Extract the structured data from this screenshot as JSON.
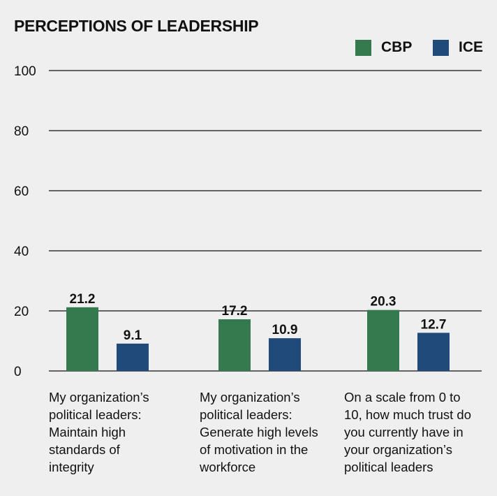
{
  "chart_data": {
    "type": "bar",
    "title": "PERCEPTIONS OF LEADERSHIP",
    "categories": [
      "My organization’s political leaders: Maintain high standards of integrity",
      "My organization’s political leaders: Generate high levels of motivation in the workforce",
      "On a scale from 0 to 10, how much trust do you currently have in your organization’s political leaders"
    ],
    "category_lines": [
      [
        "My organization’s",
        "political leaders:",
        "Maintain high",
        "standards of",
        "integrity"
      ],
      [
        "My organization’s",
        "political leaders:",
        "Generate high levels",
        "of motivation in the",
        "workforce"
      ],
      [
        "On a scale from 0 to",
        "10, how much trust do",
        "you currently have in",
        "your organization’s",
        "political leaders"
      ]
    ],
    "series": [
      {
        "name": "CBP",
        "color": "#347a4e",
        "values": [
          21.2,
          17.2,
          20.3
        ],
        "labels": [
          "21.2",
          "17.2",
          "20.3"
        ]
      },
      {
        "name": "ICE",
        "color": "#1f4a7a",
        "values": [
          9.1,
          10.9,
          12.7
        ],
        "labels": [
          "9.1",
          "10.9",
          "12.7"
        ]
      }
    ],
    "ylim": [
      0,
      100
    ],
    "yticks": [
      0,
      20,
      40,
      60,
      80,
      100
    ],
    "ytick_labels": [
      "0",
      "20",
      "40",
      "60",
      "80",
      "100"
    ],
    "grid": true,
    "legend": "top-right",
    "xlabel": "",
    "ylabel": ""
  }
}
